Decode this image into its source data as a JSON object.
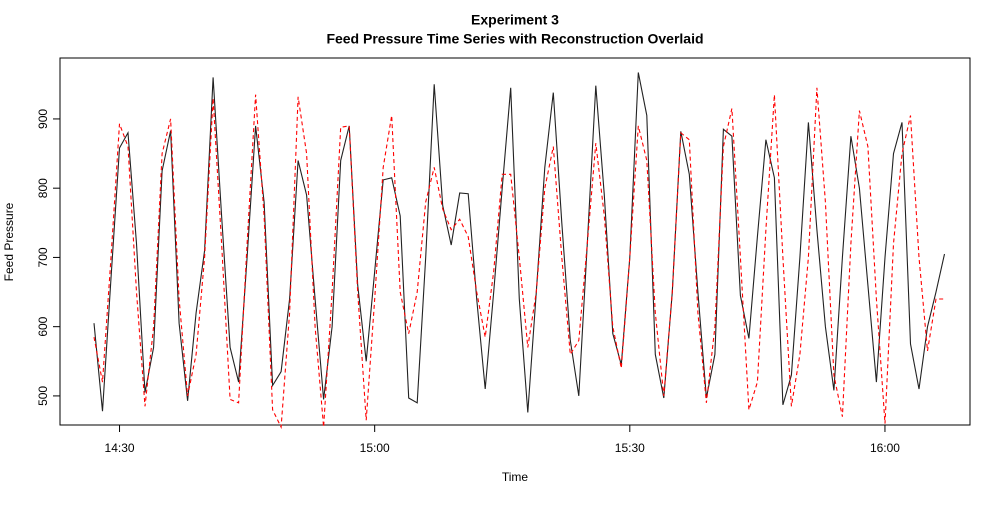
{
  "chart_data": {
    "type": "line",
    "title": "Experiment 3",
    "subtitle": "Feed Pressure Time Series with Reconstruction Overlaid",
    "x_label": "Time",
    "y_label": "Feed Pressure",
    "x": [
      "14:27",
      "14:28",
      "14:29",
      "14:30",
      "14:31",
      "14:32",
      "14:33",
      "14:34",
      "14:35",
      "14:36",
      "14:37",
      "14:38",
      "14:39",
      "14:40",
      "14:41",
      "14:42",
      "14:43",
      "14:44",
      "14:45",
      "14:46",
      "14:47",
      "14:48",
      "14:49",
      "14:50",
      "14:51",
      "14:52",
      "14:53",
      "14:54",
      "14:55",
      "14:56",
      "14:57",
      "14:58",
      "14:59",
      "15:00",
      "15:01",
      "15:02",
      "15:03",
      "15:04",
      "15:05",
      "15:06",
      "15:07",
      "15:08",
      "15:09",
      "15:10",
      "15:11",
      "15:12",
      "15:13",
      "15:14",
      "15:15",
      "15:16",
      "15:17",
      "15:18",
      "15:19",
      "15:20",
      "15:21",
      "15:22",
      "15:23",
      "15:24",
      "15:25",
      "15:26",
      "15:27",
      "15:28",
      "15:29",
      "15:30",
      "15:31",
      "15:32",
      "15:33",
      "15:34",
      "15:35",
      "15:36",
      "15:37",
      "15:38",
      "15:39",
      "15:40",
      "15:41",
      "15:42",
      "15:43",
      "15:44",
      "15:45",
      "15:46",
      "15:47",
      "15:48",
      "15:49",
      "15:50",
      "15:51",
      "15:52",
      "15:53",
      "15:54",
      "15:55",
      "15:56",
      "15:57",
      "15:58",
      "15:59",
      "16:00",
      "16:01",
      "16:02",
      "16:03",
      "16:04",
      "16:05",
      "16:06",
      "16:07"
    ],
    "series": [
      {
        "color": "#222222",
        "dash": false,
        "values": [
          605,
          478,
          670,
          858,
          880,
          720,
          505,
          570,
          825,
          883,
          605,
          493,
          620,
          710,
          960,
          760,
          570,
          520,
          700,
          890,
          780,
          515,
          535,
          640,
          840,
          790,
          640,
          495,
          600,
          840,
          890,
          660,
          550,
          680,
          812,
          815,
          760,
          497,
          490,
          700,
          950,
          775,
          718,
          793,
          792,
          640,
          510,
          650,
          800,
          945,
          640,
          476,
          650,
          830,
          938,
          750,
          580,
          500,
          720,
          948,
          790,
          590,
          545,
          700,
          967,
          905,
          560,
          497,
          650,
          882,
          820,
          650,
          497,
          560,
          885,
          875,
          645,
          583,
          730,
          870,
          815,
          487,
          530,
          700,
          895,
          740,
          600,
          508,
          700,
          875,
          800,
          660,
          520,
          700,
          850,
          895,
          575,
          510,
          600,
          650,
          705
        ]
      },
      {
        "color": "#ff0000",
        "dash": true,
        "values": [
          585,
          520,
          700,
          893,
          860,
          650,
          485,
          600,
          850,
          900,
          640,
          500,
          560,
          700,
          930,
          720,
          495,
          490,
          720,
          935,
          760,
          480,
          455,
          620,
          932,
          850,
          600,
          455,
          650,
          888,
          890,
          650,
          465,
          640,
          830,
          905,
          650,
          590,
          650,
          780,
          830,
          770,
          740,
          755,
          730,
          650,
          585,
          680,
          820,
          820,
          700,
          570,
          650,
          800,
          860,
          700,
          560,
          580,
          720,
          865,
          760,
          600,
          540,
          700,
          890,
          840,
          620,
          500,
          650,
          880,
          870,
          620,
          490,
          600,
          860,
          915,
          700,
          480,
          520,
          740,
          935,
          700,
          485,
          560,
          700,
          945,
          780,
          530,
          470,
          720,
          912,
          860,
          640,
          460,
          720,
          850,
          905,
          700,
          565,
          640,
          640
        ]
      }
    ],
    "xlim": [
      "14:23",
      "16:10"
    ],
    "xticks": [
      "14:30",
      "15:00",
      "15:30",
      "16:00"
    ],
    "ylim": [
      458,
      988
    ],
    "yticks": [
      500,
      600,
      700,
      800,
      900
    ]
  }
}
